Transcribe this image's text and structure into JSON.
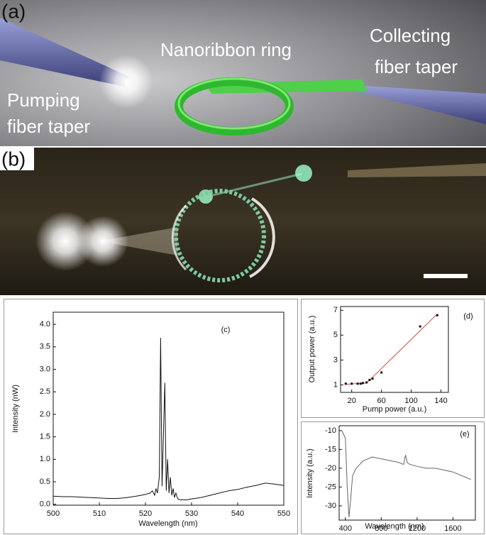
{
  "photo_a": {
    "label": "(a)",
    "texts": [
      "Nanoribbon ring",
      "Collecting",
      "fiber taper",
      "Pumping",
      "fiber taper"
    ]
  },
  "photo_b": {
    "label": "(b)"
  },
  "chart_data": [
    {
      "type": "line",
      "panel_label": "(c)",
      "xlabel": "Wavelength (nm)",
      "ylabel": "Intensity (nW)",
      "color": "#111111",
      "xlim": [
        500,
        550
      ],
      "xticks": [
        500,
        510,
        520,
        530,
        540,
        550
      ],
      "ylim": [
        -0.02,
        4.27
      ],
      "yticks": [
        {
          "value": 0,
          "label": "0.0"
        },
        0.5,
        {
          "value": 1,
          "label": "1.0"
        },
        1.5,
        {
          "value": 2,
          "label": "2.0"
        },
        2.5,
        {
          "value": 3,
          "label": "3.0"
        },
        3.5,
        {
          "value": 4,
          "label": "4.0"
        }
      ],
      "x": [
        500,
        502,
        504,
        506,
        508,
        510,
        512,
        514,
        516,
        518,
        519,
        520,
        521,
        521.5,
        522,
        522.3,
        522.6,
        523,
        523.3,
        523.6,
        523.9,
        524.2,
        524.5,
        524.8,
        525.1,
        525.4,
        525.7,
        526,
        526.3,
        526.6,
        527,
        527.5,
        528,
        529,
        530,
        532,
        534,
        536,
        538,
        540,
        542,
        544,
        546,
        548,
        550
      ],
      "values": [
        0.18,
        0.17,
        0.17,
        0.16,
        0.15,
        0.14,
        0.13,
        0.13,
        0.15,
        0.18,
        0.2,
        0.22,
        0.25,
        0.3,
        0.2,
        0.35,
        0.25,
        0.6,
        3.7,
        0.4,
        1.5,
        2.7,
        0.3,
        1.0,
        0.25,
        0.6,
        0.2,
        0.35,
        0.15,
        0.25,
        0.12,
        0.1,
        0.1,
        0.1,
        0.12,
        0.15,
        0.2,
        0.25,
        0.3,
        0.33,
        0.38,
        0.42,
        0.47,
        0.45,
        0.42
      ]
    },
    {
      "type": "scatter",
      "panel_label": "(d)",
      "xlabel": "Pump power (a.u.)",
      "ylabel": "Output power (a.u.)",
      "color": "#111111",
      "xlim": [
        5,
        150
      ],
      "xticks": [
        20,
        60,
        100,
        140
      ],
      "ylim": [
        0.4,
        7.3
      ],
      "yticks": [
        1,
        3,
        5,
        7
      ],
      "x": [
        12,
        20,
        28,
        32,
        35,
        40,
        44,
        48,
        60,
        112,
        135
      ],
      "values": [
        1.1,
        1.1,
        1.1,
        1.1,
        1.15,
        1.2,
        1.4,
        1.5,
        2.0,
        5.7,
        6.6
      ],
      "fit": {
        "color": "#d04a3a",
        "x": [
          12,
          40,
          135
        ],
        "values": [
          1.05,
          1.15,
          6.7
        ]
      }
    },
    {
      "type": "line",
      "panel_label": "(e)",
      "xlabel": "Wavelength (nm)",
      "ylabel": "Intensity (a.u.)",
      "color": "#666666",
      "xlim": [
        330,
        1850
      ],
      "xticks": [
        400,
        800,
        1200,
        1600
      ],
      "ylim": [
        -33.8,
        -8.7
      ],
      "yticks": [
        -10,
        -15,
        -20,
        -25,
        -30
      ],
      "x": [
        360,
        400,
        420,
        440,
        460,
        480,
        520,
        600,
        700,
        800,
        900,
        1000,
        1050,
        1070,
        1090,
        1120,
        1200,
        1300,
        1400,
        1500,
        1600,
        1700,
        1800
      ],
      "values": [
        -10,
        -12,
        -25,
        -33,
        -28,
        -22,
        -20,
        -18,
        -17,
        -17.5,
        -18,
        -18.5,
        -19,
        -16.5,
        -18.5,
        -19,
        -19.5,
        -20,
        -20,
        -20.5,
        -21,
        -22,
        -23
      ]
    }
  ]
}
